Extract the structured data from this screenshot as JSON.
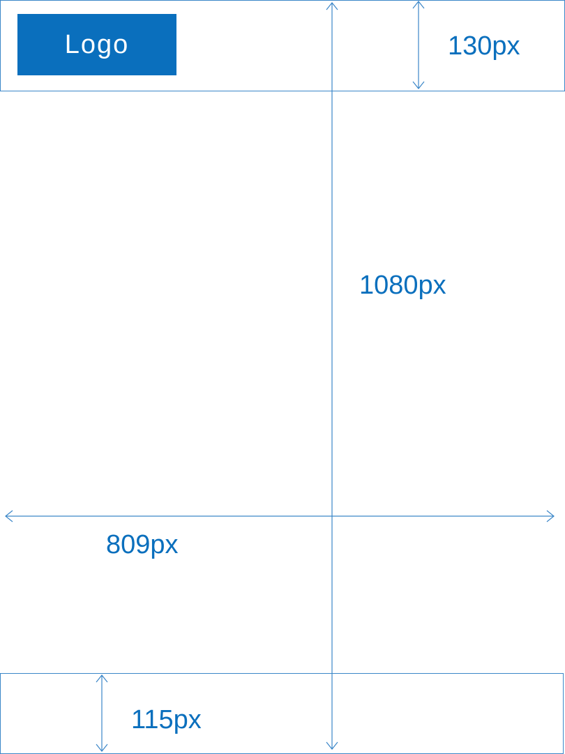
{
  "logo": {
    "label": "Logo"
  },
  "dimensions": {
    "header_height_label": "130px",
    "total_height_label": "1080px",
    "width_label": "809px",
    "footer_height_label": "115px"
  },
  "colors": {
    "accent": "#0a6fbd",
    "line": "#3a86c8",
    "background": "#ffffff"
  }
}
